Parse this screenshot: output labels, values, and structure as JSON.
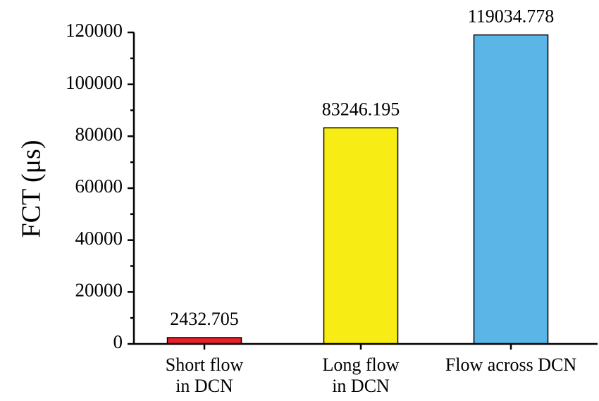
{
  "chart_data": {
    "type": "bar",
    "title": "",
    "xlabel": "",
    "ylabel": "FCT (μs)",
    "ylim": [
      0,
      120000
    ],
    "yticks": [
      0,
      20000,
      40000,
      60000,
      80000,
      100000,
      120000
    ],
    "ytick_labels": [
      "0",
      "20000",
      "40000",
      "60000",
      "80000",
      "100000",
      "120000"
    ],
    "grid": false,
    "categories": [
      [
        "Short flow",
        "in DCN"
      ],
      [
        "Long flow",
        "in DCN"
      ],
      [
        "Flow across DCN"
      ]
    ],
    "values": [
      2432.705,
      83246.195,
      119034.778
    ],
    "data_labels": [
      "2432.705",
      "83246.195",
      "119034.778"
    ],
    "colors": [
      "#e8202a",
      "#f7ec13",
      "#5bb5e6"
    ]
  }
}
